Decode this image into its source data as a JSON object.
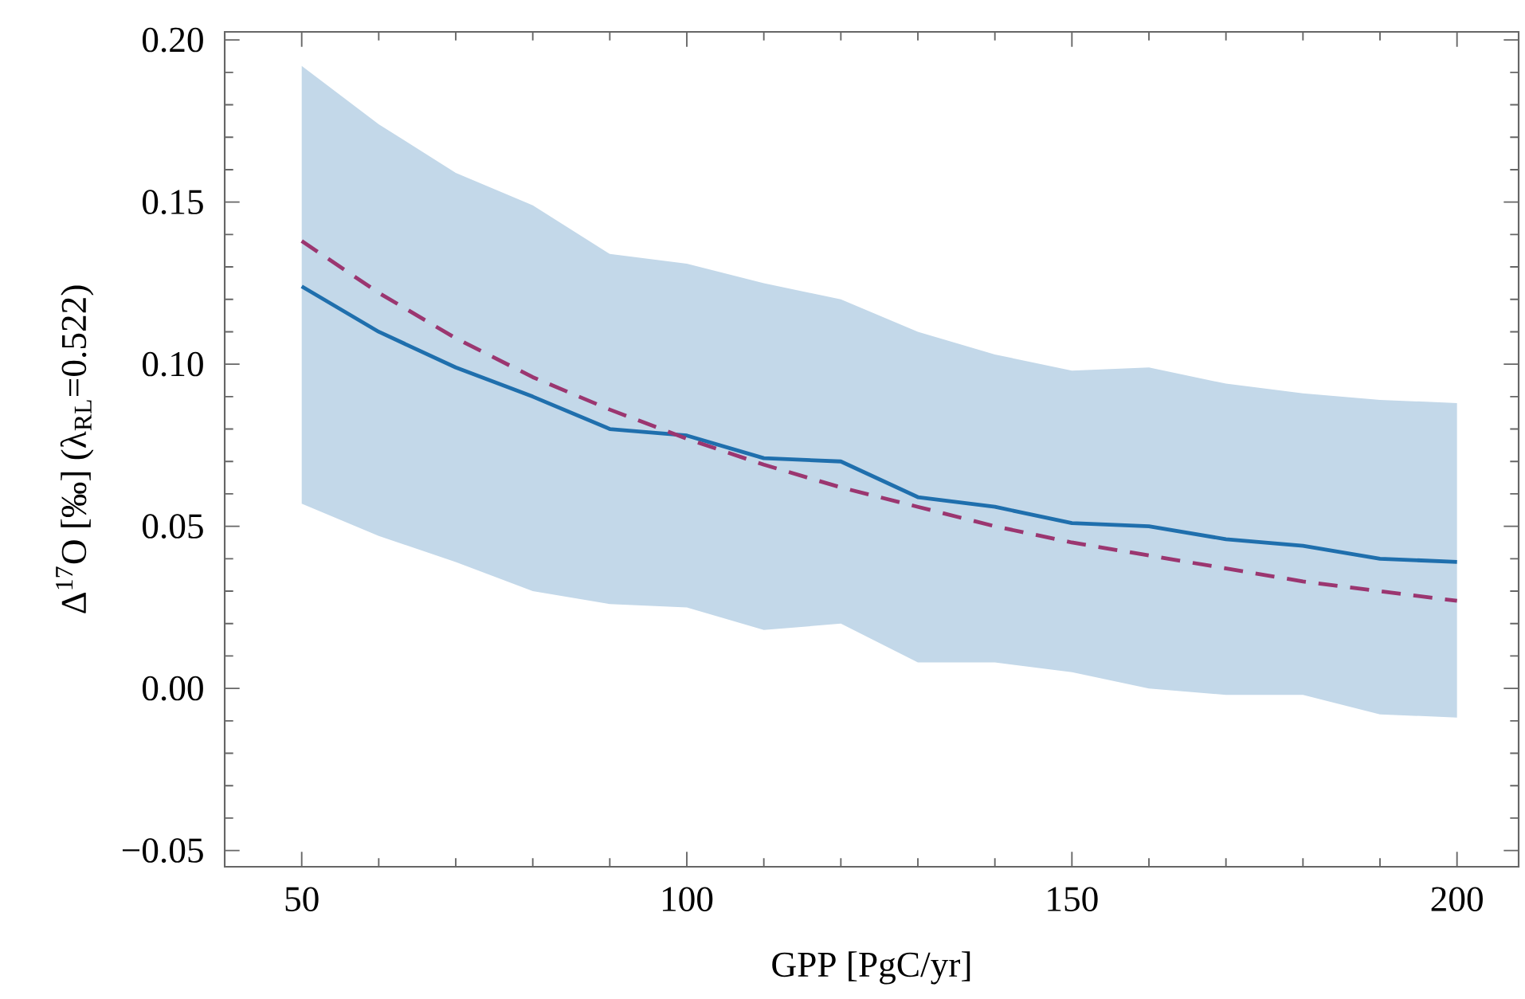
{
  "chart_data": {
    "type": "line",
    "xlabel": "GPP [PgC/yr]",
    "ylabel": "Δ$^{17}$O [‰] (λ$_{RL}$=0.522)",
    "x": [
      50,
      60,
      70,
      80,
      90,
      100,
      110,
      120,
      130,
      140,
      150,
      160,
      170,
      180,
      190,
      200
    ],
    "series": [
      {
        "color": "#1f6fad",
        "line_style": "solid",
        "values": [
          0.124,
          0.11,
          0.099,
          0.09,
          0.08,
          0.078,
          0.071,
          0.07,
          0.059,
          0.056,
          0.051,
          0.05,
          0.046,
          0.044,
          0.04,
          0.039
        ],
        "upper": [
          0.192,
          0.174,
          0.159,
          0.149,
          0.134,
          0.131,
          0.125,
          0.12,
          0.11,
          0.103,
          0.098,
          0.099,
          0.094,
          0.091,
          0.089,
          0.088
        ],
        "lower": [
          0.057,
          0.047,
          0.039,
          0.03,
          0.026,
          0.025,
          0.018,
          0.02,
          0.008,
          0.008,
          0.005,
          0.0,
          -0.002,
          -0.002,
          -0.008,
          -0.009
        ]
      },
      {
        "color": "#9b3670",
        "line_style": "dashed",
        "values": [
          0.138,
          0.122,
          0.108,
          0.096,
          0.086,
          0.077,
          0.069,
          0.062,
          0.056,
          0.05,
          0.045,
          0.041,
          0.037,
          0.033,
          0.03,
          0.027
        ]
      }
    ],
    "xlim": [
      40,
      208
    ],
    "ylim": [
      -0.055,
      0.2025
    ],
    "xticks": [
      50,
      100,
      150,
      200
    ],
    "yticks": [
      {
        "value": -0.05,
        "label": "−0.05"
      },
      {
        "value": 0,
        "label": "0.00"
      },
      {
        "value": 0.05,
        "label": "0.05"
      },
      {
        "value": 0.1,
        "label": "0.10"
      },
      {
        "value": 0.15,
        "label": "0.15"
      },
      {
        "value": 0.2,
        "label": "0.20"
      }
    ],
    "marker": "none"
  }
}
